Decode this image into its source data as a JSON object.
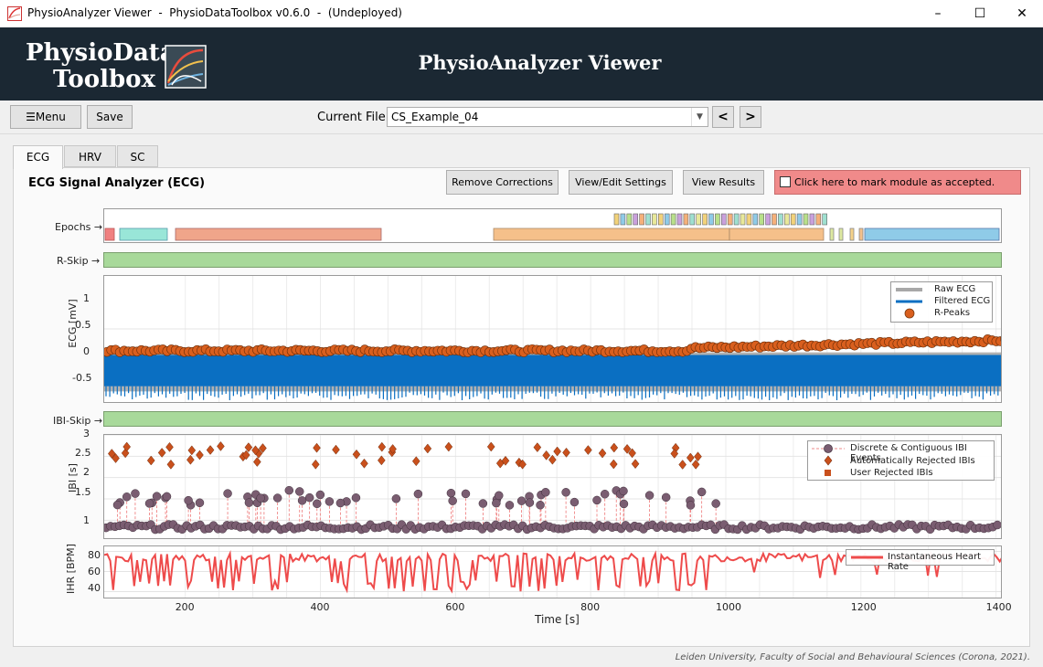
{
  "window": {
    "title": "PhysioAnalyzer Viewer  -  PhysioDataToolbox v0.6.0  -  (Undeployed)",
    "minimize": "–",
    "maximize": "☐",
    "close": "✕"
  },
  "header": {
    "logo_line1": "PhysioData",
    "logo_line2": "Toolbox",
    "app_title": "PhysioAnalyzer Viewer"
  },
  "toolbar": {
    "menu_label": "☰Menu",
    "save_label": "Save",
    "current_file_label": "Current File:",
    "current_file_value": "CS_Example_04",
    "prev_label": "<",
    "next_label": ">"
  },
  "tabs": [
    {
      "label": "ECG",
      "active": true
    },
    {
      "label": "HRV",
      "active": false
    },
    {
      "label": "SC",
      "active": false
    }
  ],
  "module": {
    "title": "ECG Signal Analyzer (ECG)",
    "remove_corrections": "Remove Corrections",
    "view_edit_settings": "View/Edit Settings",
    "view_results": "View Results",
    "accept_label": "Click here to mark module as accepted."
  },
  "rows": {
    "epochs": "Epochs →",
    "rskip": "R-Skip →",
    "ibiskip": "IBI-Skip →"
  },
  "colors": {
    "raw_ecg": "#a8a8a8",
    "filtered_ecg": "#0a6fc2",
    "r_peaks": "#d95f1e",
    "ibi_events": "#7a5d71",
    "rejected": "#c9501c",
    "ihr": "#ee4b4b",
    "skip_green": "#a8d99a"
  },
  "chart_data": [
    {
      "type": "line",
      "ylabel": "ECG [mV]",
      "ylim": [
        -0.5,
        1.2
      ],
      "yticks": [
        "1",
        "0.5",
        "0",
        "-0.5"
      ],
      "xlim": [
        80,
        1410
      ],
      "legend": [
        "Raw ECG",
        "Filtered ECG",
        "R-Peaks"
      ],
      "legend_placement": "top-right"
    },
    {
      "type": "scatter",
      "ylabel": "IBI [s]",
      "ylim": [
        0.6,
        3.0
      ],
      "yticks": [
        "3",
        "2.5",
        "2",
        "1.5",
        "1"
      ],
      "xlim": [
        80,
        1410
      ],
      "legend": [
        "Discrete & Contiguous IBI Events",
        "Automatically Rejected IBIs",
        "User Rejected IBIs"
      ],
      "legend_placement": "top-right"
    },
    {
      "type": "line",
      "ylabel": "IHR [BPM]",
      "ylim": [
        35,
        85
      ],
      "yticks": [
        "80",
        "60",
        "40"
      ],
      "xlim": [
        80,
        1410
      ],
      "xticks": [
        "200",
        "400",
        "600",
        "800",
        "1000",
        "1200",
        "1400"
      ],
      "xlabel": "Time [s]",
      "legend": [
        "Instantaneous Heart Rate"
      ],
      "legend_placement": "top-right"
    }
  ],
  "footer": "Leiden University, Faculty of Social and Behavioural Sciences (Corona, 2021)."
}
